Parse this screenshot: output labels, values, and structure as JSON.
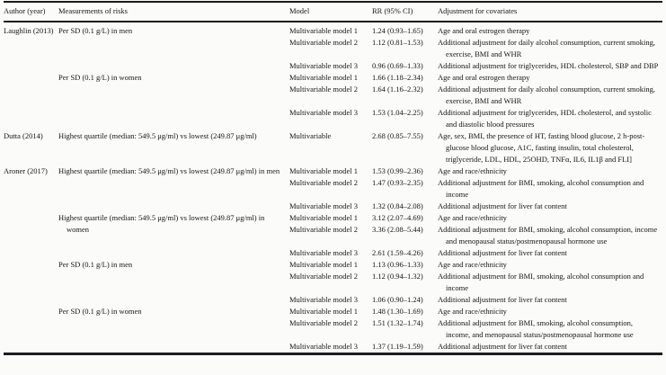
{
  "table": {
    "columns": [
      "Author (year)",
      "Measurements of risks",
      "Model",
      "RR (95% CI)",
      "Adjustment for covariates"
    ],
    "studies": [
      {
        "author": "Laughlin (2013)",
        "groups": [
          {
            "measurement": "Per SD (0.1 g/L) in men",
            "rows": [
              {
                "model": "Multivariable model 1",
                "rr": "1.24 (0.93–1.65)",
                "adjustment": "Age and oral estrogen therapy"
              },
              {
                "model": "Multivariable model 2",
                "rr": "1.12 (0.81–1.53)",
                "adjustment": "Additional adjustment for daily alcohol consumption, current smoking, exercise, BMI and WHR"
              },
              {
                "model": "Multivariable model 3",
                "rr": "0.96 (0.69–1.33)",
                "adjustment": "Additional adjustment for triglycerides, HDL cholesterol, SBP and DBP"
              }
            ]
          },
          {
            "measurement": "Per SD (0.1 g/L) in women",
            "rows": [
              {
                "model": "Multivariable model 1",
                "rr": "1.66 (1.18–2.34)",
                "adjustment": "Age and oral estrogen therapy"
              },
              {
                "model": "Multivariable model 2",
                "rr": "1.64 (1.16–2.32)",
                "adjustment": "Additional adjustment for daily alcohol consumption, current smoking, exercise, BMI and WHR"
              },
              {
                "model": "Multivariable model 3",
                "rr": "1.53 (1.04–2.25)",
                "adjustment": "Additional adjustment for triglycerides, HDL cholesterol, and systolic and diastolic blood pressures"
              }
            ]
          }
        ]
      },
      {
        "author": "Dutta (2014)",
        "groups": [
          {
            "measurement": "Highest quartile (median: 549.5 μg/ml) vs lowest (249.87 μg/ml)",
            "rows": [
              {
                "model": "Multivariable",
                "rr": "2.68 (0.85–7.55)",
                "adjustment": "Age, sex, BMI, the presence of HT, fasting blood glucose, 2 h-post-glucose blood glucose, A1C, fasting insulin, total cholesterol, triglyceride, LDL, HDL, 25OHD, TNFα, IL6, IL1β and FLI]"
              }
            ]
          }
        ]
      },
      {
        "author": "Aroner (2017)",
        "groups": [
          {
            "measurement": "Highest quartile (median: 549.5 μg/ml) vs lowest (249.87 μg/ml) in men",
            "rows": [
              {
                "model": "Multivariable model 1",
                "rr": "1.53 (0.99–2.36)",
                "adjustment": "Age and race/ethnicity"
              },
              {
                "model": "Multivariable model 2",
                "rr": "1.47 (0.93–2.35)",
                "adjustment": "Additional adjustment for BMI, smoking, alcohol consumption and income"
              },
              {
                "model": "Multivariable model 3",
                "rr": "1.32 (0.84–2.08)",
                "adjustment": "Additional adjustment for liver fat content"
              }
            ]
          },
          {
            "measurement": "Highest quartile (median: 549.5 μg/ml) vs lowest (249.87 μg/ml) in women",
            "rows": [
              {
                "model": "Multivariable model 1",
                "rr": "3.12 (2.07–4.69)",
                "adjustment": "Age and race/ethnicity"
              },
              {
                "model": "Multivariable model 2",
                "rr": "3.36 (2.08–5.44)",
                "adjustment": "Additional adjustment for BMI, smoking, alcohol consumption, income and menopausal status/postmenopausal hormone use"
              },
              {
                "model": "Multivariable model 3",
                "rr": "2.61 (1.59–4.26)",
                "adjustment": "Additional adjustment for liver fat content"
              }
            ]
          },
          {
            "measurement": "Per SD (0.1 g/L) in men",
            "rows": [
              {
                "model": "Multivariable model 1",
                "rr": "1.13 (0.96–1.33)",
                "adjustment": "Age and race/ethnicity"
              },
              {
                "model": "Multivariable model 2",
                "rr": "1.12 (0.94–1.32)",
                "adjustment": "Additional adjustment for BMI, smoking, alcohol consumption and income"
              },
              {
                "model": "Multivariable model 3",
                "rr": "1.06 (0.90–1.24)",
                "adjustment": "Additional adjustment for liver fat content"
              }
            ]
          },
          {
            "measurement": "Per SD (0.1 g/L) in women",
            "rows": [
              {
                "model": "Multivariable model 1",
                "rr": "1.48 (1.30–1.69)",
                "adjustment": "Age and race/ethnicity"
              },
              {
                "model": "Multivariable model 2",
                "rr": "1.51 (1.32–1.74)",
                "adjustment": "Additional adjustment for BMI, smoking, alcohol consumption, income, and menopausal status/postmenopausal hormone use"
              },
              {
                "model": "Multivariable model 3",
                "rr": "1.37 (1.19–1.59)",
                "adjustment": "Additional adjustment for liver fat content"
              }
            ]
          }
        ]
      }
    ]
  }
}
